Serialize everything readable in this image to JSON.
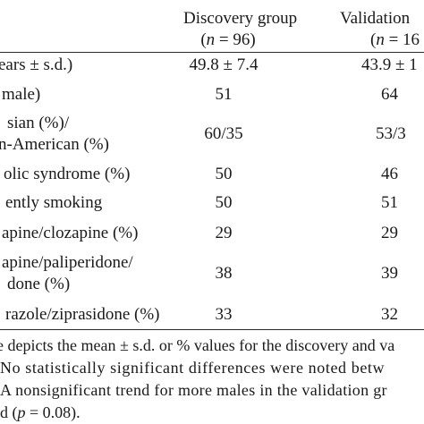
{
  "header": {
    "discovery_label": "Discovery group",
    "discovery_n": "(n = 96)",
    "validation_label": "Validation",
    "validation_n": "(n = 16"
  },
  "rows": [
    {
      "label": "ears ± s.d.)",
      "discovery": "49.8 ± 7.4",
      "validation": "43.9 ± 1"
    },
    {
      "label": "male)",
      "discovery": "51",
      "validation": "64"
    },
    {
      "label": "sian (%)/",
      "label2": "n-American (%)",
      "discovery": "60/35",
      "validation": "53/3"
    },
    {
      "label": "olic syndrome (%)",
      "discovery": "50",
      "validation": "46"
    },
    {
      "label": "ently smoking",
      "discovery": "50",
      "validation": "51"
    },
    {
      "label": "apine/clozapine (%)",
      "discovery": "29",
      "validation": "29"
    },
    {
      "label": "apine/paliperidone/",
      "label2": "done (%)",
      "discovery": "38",
      "validation": "39"
    },
    {
      "label": "razole/ziprasidone (%)",
      "discovery": "33",
      "validation": "32"
    }
  ],
  "footnote": {
    "line1": "e depicts the mean ± s.d. or % values for the discovery and va",
    "line2": "No statistically significant differences were noted betw",
    "line3": "A nonsignificant trend for more males in the validation gr",
    "line4": "d (p = 0.08)."
  }
}
